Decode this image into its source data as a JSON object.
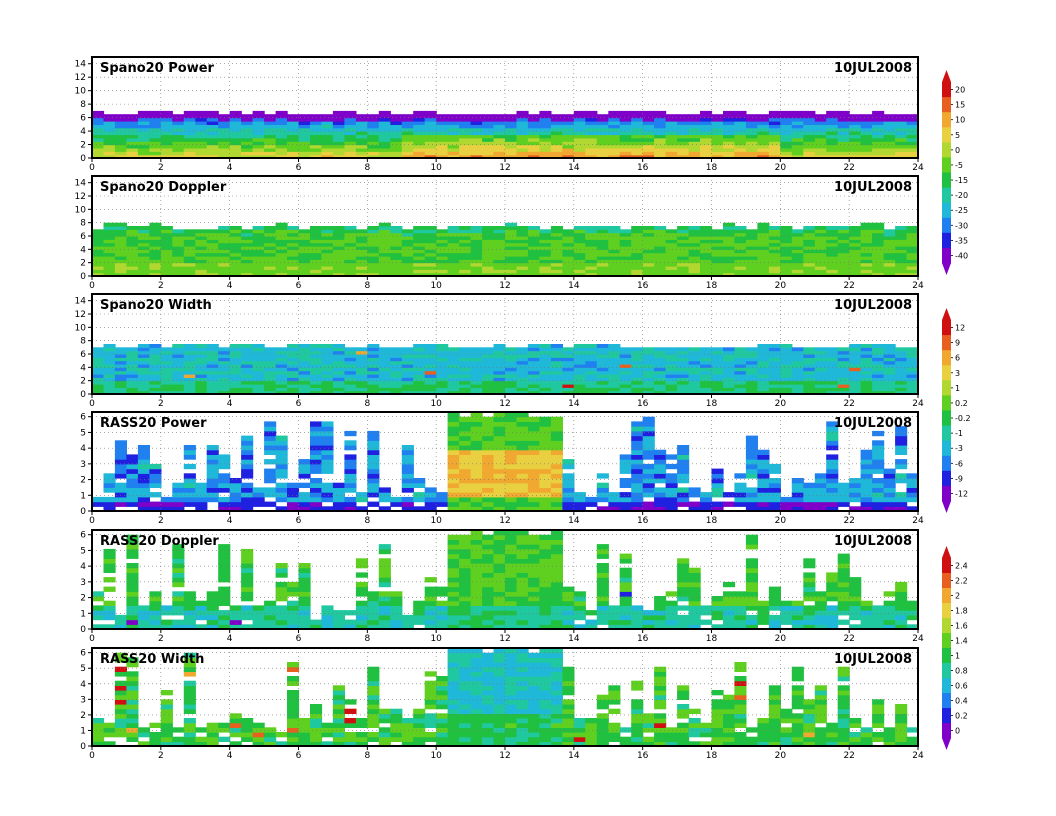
{
  "chart_data": [
    {
      "type": "heatmap",
      "title": "Spano20 Power",
      "date": "10JUL2008",
      "xlim": [
        0,
        24
      ],
      "ylim": [
        0,
        15
      ],
      "xticks": [
        0,
        2,
        4,
        6,
        8,
        10,
        12,
        14,
        16,
        18,
        20,
        22,
        24
      ],
      "yticks": [
        0,
        2,
        4,
        6,
        8,
        10,
        12,
        14
      ],
      "grid": true,
      "colorbar": [
        "20",
        "15",
        "10",
        "5",
        "0",
        "-5",
        "-15",
        "-20",
        "-25",
        "-30",
        "-35",
        "-40"
      ],
      "data_top_km": 6.5
    },
    {
      "type": "heatmap",
      "title": "Spano20 Doppler",
      "date": "10JUL2008",
      "xlim": [
        0,
        24
      ],
      "ylim": [
        0,
        15
      ],
      "xticks": [
        0,
        2,
        4,
        6,
        8,
        10,
        12,
        14,
        16,
        18,
        20,
        22,
        24
      ],
      "yticks": [
        0,
        2,
        4,
        6,
        8,
        10,
        12,
        14
      ],
      "grid": true,
      "colorbar": null,
      "data_top_km": 7.2
    },
    {
      "type": "heatmap",
      "title": "Spano20 Width",
      "date": "10JUL2008",
      "xlim": [
        0,
        24
      ],
      "ylim": [
        0,
        15
      ],
      "xticks": [
        0,
        2,
        4,
        6,
        8,
        10,
        12,
        14,
        16,
        18,
        20,
        22,
        24
      ],
      "yticks": [
        0,
        2,
        4,
        6,
        8,
        10,
        12,
        14
      ],
      "grid": true,
      "colorbar": [
        "12",
        "9",
        "6",
        "3",
        "1",
        "0.2",
        "-0.2",
        "-1",
        "-3",
        "-6",
        "-9",
        "-12"
      ],
      "data_top_km": 7.0
    },
    {
      "type": "heatmap",
      "title": "RASS20 Power",
      "date": "10JUL2008",
      "xlim": [
        0,
        24
      ],
      "ylim": [
        0,
        6.3
      ],
      "xticks": [
        0,
        2,
        4,
        6,
        8,
        10,
        12,
        14,
        16,
        18,
        20,
        22,
        24
      ],
      "yticks": [
        0,
        1,
        2,
        3,
        4,
        5,
        6
      ],
      "grid": true,
      "colorbar": null,
      "data_top_km": 6.2
    },
    {
      "type": "heatmap",
      "title": "RASS20 Doppler",
      "date": "10JUL2008",
      "xlim": [
        0,
        24
      ],
      "ylim": [
        0,
        6.3
      ],
      "xticks": [
        0,
        2,
        4,
        6,
        8,
        10,
        12,
        14,
        16,
        18,
        20,
        22,
        24
      ],
      "yticks": [
        0,
        1,
        2,
        3,
        4,
        5,
        6
      ],
      "grid": true,
      "colorbar": [
        "2.4",
        "2.2",
        "2",
        "1.8",
        "1.6",
        "1.4",
        "1",
        "0.8",
        "0.6",
        "0.4",
        "0.2",
        "0"
      ],
      "data_top_km": 6.2
    },
    {
      "type": "heatmap",
      "title": "RASS20 Width",
      "date": "10JUL2008",
      "xlim": [
        0,
        24
      ],
      "ylim": [
        0,
        6.3
      ],
      "xticks": [
        0,
        2,
        4,
        6,
        8,
        10,
        12,
        14,
        16,
        18,
        20,
        22,
        24
      ],
      "yticks": [
        0,
        1,
        2,
        3,
        4,
        5,
        6
      ],
      "grid": true,
      "colorbar": null,
      "data_top_km": 6.2
    }
  ],
  "palette": [
    "#7f00c8",
    "#2020e0",
    "#2080f0",
    "#20b8d8",
    "#20c8a0",
    "#20c040",
    "#60d020",
    "#b0d830",
    "#e8d040",
    "#f0a830",
    "#e86020",
    "#d01010"
  ]
}
